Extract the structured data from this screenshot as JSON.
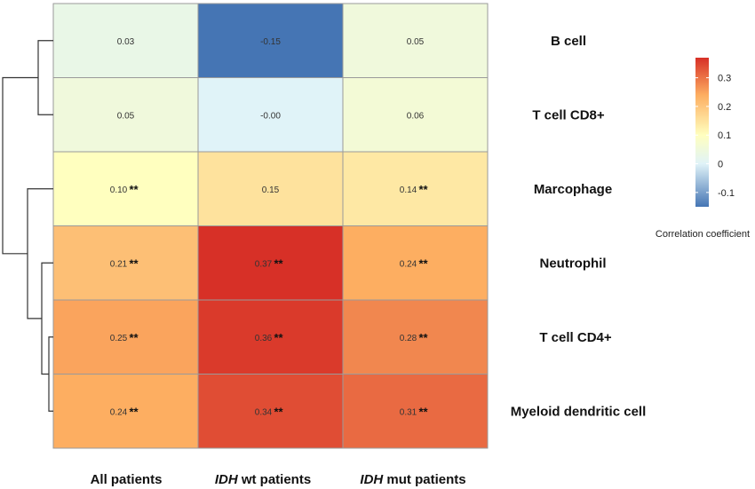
{
  "chart_data": {
    "type": "heatmap",
    "rows": [
      "B cell",
      "T cell CD8+",
      "Marcophage",
      "Neutrophil",
      "T cell CD4+",
      "Myeloid dendritic cell"
    ],
    "columns": [
      {
        "italic": "",
        "rest": "All patients"
      },
      {
        "italic": "IDH",
        "rest": " wt patients"
      },
      {
        "italic": "IDH",
        "rest": " mut patients"
      }
    ],
    "values": [
      [
        0.03,
        -0.15,
        0.05
      ],
      [
        0.05,
        -0.0,
        0.06
      ],
      [
        0.1,
        0.15,
        0.14
      ],
      [
        0.21,
        0.37,
        0.24
      ],
      [
        0.25,
        0.36,
        0.28
      ],
      [
        0.24,
        0.34,
        0.31
      ]
    ],
    "labels": [
      [
        "0.03",
        "-0.15",
        "0.05"
      ],
      [
        "0.05",
        "-0.00",
        "0.06"
      ],
      [
        "0.10",
        "0.15",
        "0.14"
      ],
      [
        "0.21",
        "0.37",
        "0.24"
      ],
      [
        "0.25",
        "0.36",
        "0.28"
      ],
      [
        "0.24",
        "0.34",
        "0.31"
      ]
    ],
    "significance": [
      [
        "",
        "",
        ""
      ],
      [
        "",
        "",
        ""
      ],
      [
        "**",
        "",
        "**"
      ],
      [
        "**",
        "**",
        "**"
      ],
      [
        "**",
        "**",
        "**"
      ],
      [
        "**",
        "**",
        "**"
      ]
    ],
    "colorbar": {
      "title": "Correlation coefficient",
      "range": [
        -0.15,
        0.37
      ],
      "ticks": [
        -0.1,
        0,
        0.1,
        0.2,
        0.3
      ],
      "tick_labels": [
        "-0.1",
        "0",
        "0.1",
        "0.2",
        "0.3"
      ],
      "colors": [
        "#4575b4",
        "#e0f3f8",
        "#ffffbf",
        "#fdae61",
        "#d73027"
      ]
    },
    "dendrogram": "rows",
    "grid": true,
    "legend_position": "right"
  }
}
